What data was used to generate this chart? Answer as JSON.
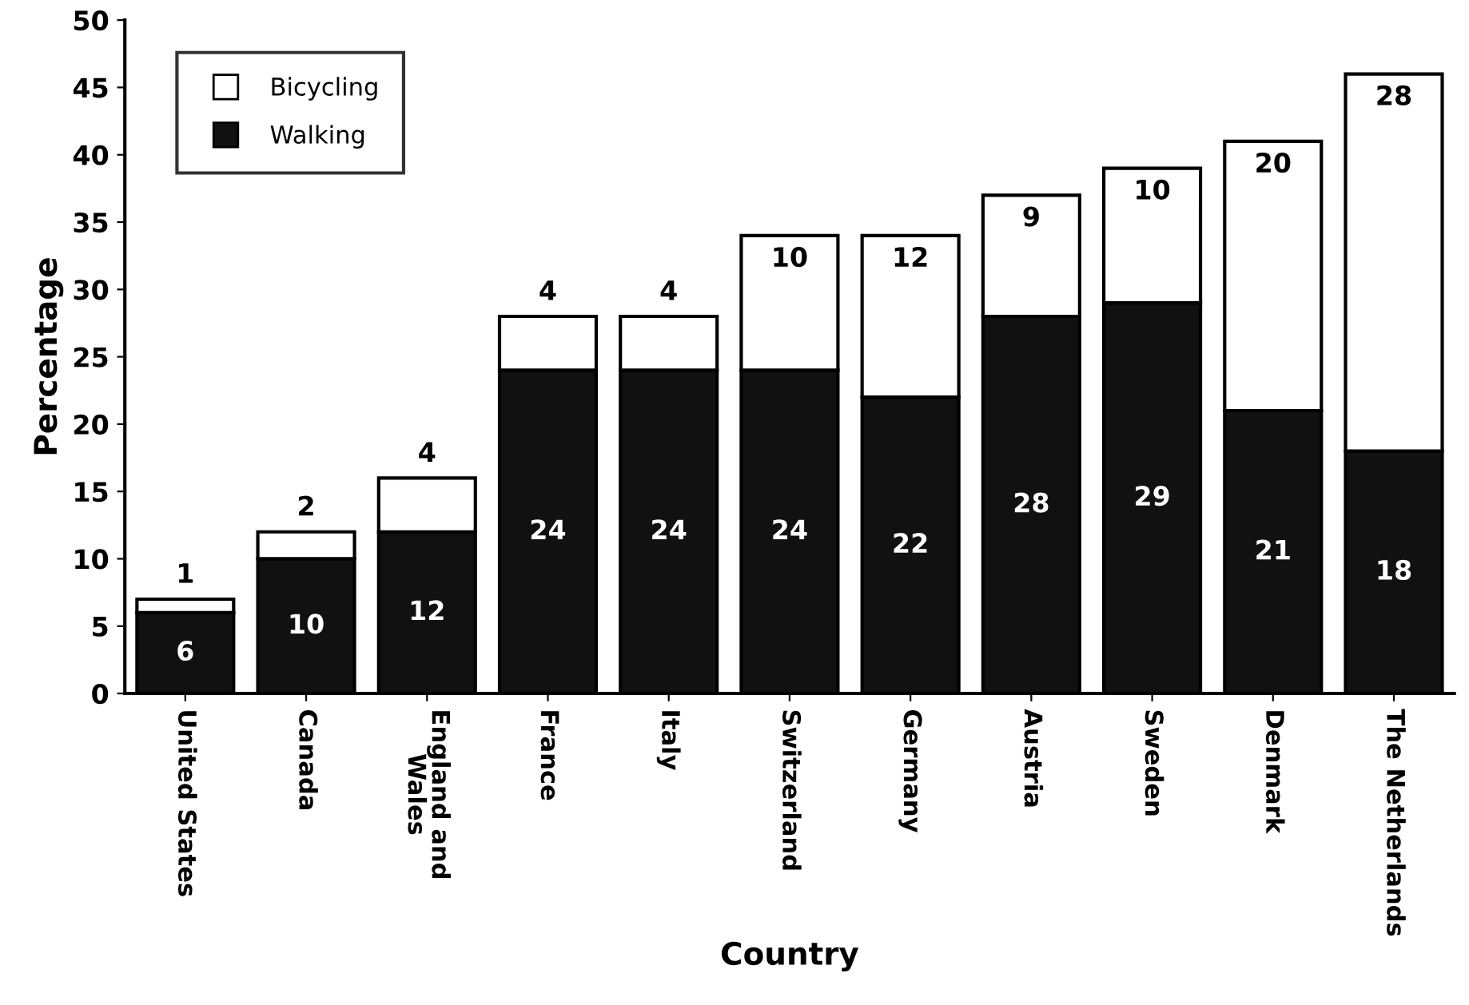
{
  "chart_data": {
    "type": "bar",
    "stacked": true,
    "xlabel": "Country",
    "ylabel": "Percentage",
    "categories": [
      "United States",
      "Canada",
      "England and\nWales",
      "France",
      "Italy",
      "Switzerland",
      "Germany",
      "Austria",
      "Sweden",
      "Denmark",
      "The Netherlands"
    ],
    "series": [
      {
        "name": "Walking",
        "color": "#111111",
        "values": [
          6,
          10,
          12,
          24,
          24,
          24,
          22,
          28,
          29,
          21,
          18
        ]
      },
      {
        "name": "Bicycling",
        "color": "#ffffff",
        "values": [
          1,
          2,
          4,
          4,
          4,
          10,
          12,
          9,
          10,
          20,
          28
        ]
      }
    ],
    "ylim": [
      0,
      50
    ],
    "yticks": [
      0,
      5,
      10,
      15,
      20,
      25,
      30,
      35,
      40,
      45,
      50
    ],
    "grid": false,
    "legend": "top left",
    "data_labels": true,
    "marker": "square"
  }
}
